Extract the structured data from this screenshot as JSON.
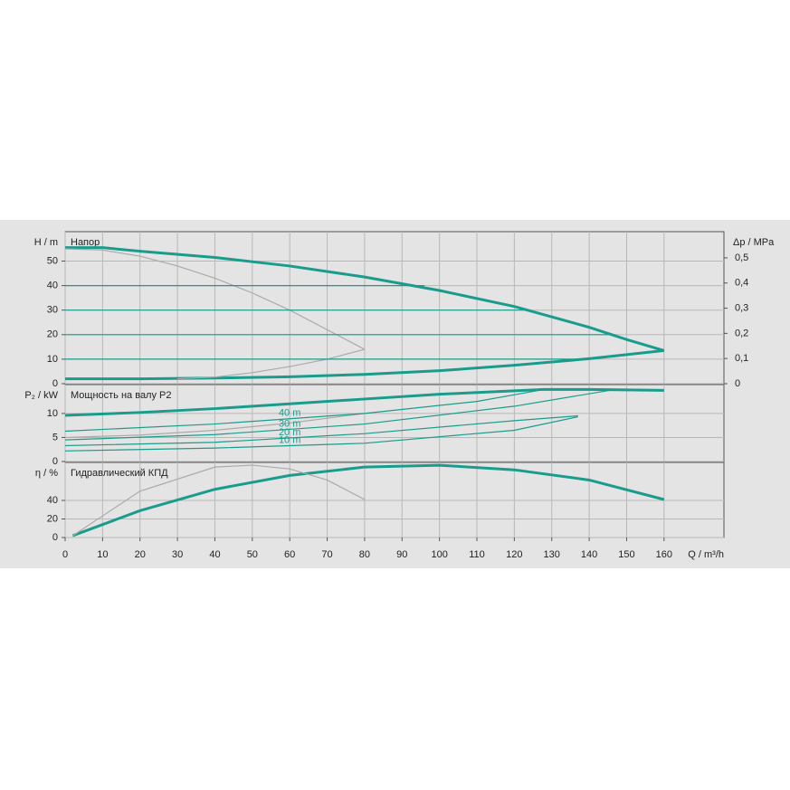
{
  "chart_data": [
    {
      "type": "line",
      "title": "Напор",
      "ylabel": "H / m",
      "y2label": "Δp / MPa",
      "ylim": [
        0,
        62
      ],
      "yticks": [
        0,
        10,
        20,
        30,
        40,
        50
      ],
      "y2lim": [
        0,
        0.604
      ],
      "y2ticks": [
        0,
        {
          "value": 0.1,
          "label": "0,1"
        },
        {
          "value": 0.2,
          "label": "0,2"
        },
        {
          "value": 0.3,
          "label": "0,3"
        },
        {
          "value": 0.4,
          "label": "0,4"
        },
        {
          "value": 0.5,
          "label": "0,5"
        }
      ],
      "grid": true,
      "series": [
        {
          "color": "#1a9c8c",
          "bold": true,
          "x": [
            0,
            10,
            20,
            40,
            60,
            80,
            100,
            120,
            140,
            150,
            160
          ],
          "values": [
            55.5,
            55.5,
            54,
            51.5,
            48,
            43.5,
            38,
            31.5,
            23,
            18,
            13.5
          ]
        },
        {
          "color": "#1a9c8c",
          "bold": true,
          "x": [
            0,
            20,
            40,
            60,
            80,
            100,
            120,
            140,
            160
          ],
          "values": [
            2,
            2,
            2.3,
            2.8,
            3.8,
            5.3,
            7.5,
            10.2,
            13.5
          ]
        },
        {
          "color": "#aaaaaa",
          "x": [
            0,
            10,
            20,
            30,
            40,
            50,
            60,
            70,
            80
          ],
          "values": [
            55,
            54.5,
            52,
            48,
            43,
            37,
            30,
            22,
            14
          ]
        },
        {
          "color": "#aaaaaa",
          "x": [
            30,
            40,
            50,
            60,
            70,
            80
          ],
          "values": [
            2,
            2.7,
            4.5,
            7,
            10,
            14
          ]
        },
        {
          "color": "#1a9c8c",
          "x": [
            0,
            96
          ],
          "values": [
            40,
            40
          ]
        },
        {
          "color": "#1a9c8c",
          "x": [
            0,
            124
          ],
          "values": [
            30,
            30
          ]
        },
        {
          "color": "#1a9c8c",
          "x": [
            0,
            146
          ],
          "values": [
            20,
            20
          ]
        },
        {
          "color": "#1a9c8c",
          "x": [
            0,
            141
          ],
          "values": [
            10,
            10
          ]
        }
      ]
    },
    {
      "type": "line",
      "title": "Мощность на валу P2",
      "ylabel": "P₂ / kW",
      "ylim": [
        0,
        16
      ],
      "yticks": [
        0,
        5,
        10
      ],
      "grid": true,
      "series": [
        {
          "color": "#1a9c8c",
          "bold": true,
          "x": [
            0,
            20,
            40,
            60,
            80,
            100,
            120,
            128,
            140,
            160
          ],
          "values": [
            9.6,
            10.2,
            11,
            12,
            13,
            14,
            14.7,
            15,
            15,
            14.8
          ]
        },
        {
          "color": "#aaaaaa",
          "x": [
            0,
            20,
            40,
            60,
            80
          ],
          "values": [
            5,
            5.5,
            6.5,
            8,
            10
          ]
        },
        {
          "color": "#1a9c8c",
          "label": "40 m",
          "x": [
            0,
            40,
            80,
            110,
            128
          ],
          "values": [
            6.3,
            7.8,
            10,
            12.5,
            15
          ]
        },
        {
          "color": "#1a9c8c",
          "label": "30 m",
          "x": [
            0,
            40,
            80,
            120,
            147
          ],
          "values": [
            4.5,
            5.6,
            7.8,
            11.5,
            15
          ]
        },
        {
          "color": "#1a9c8c",
          "label": "20 m",
          "x": [
            0,
            40,
            80,
            120,
            137
          ],
          "values": [
            3.3,
            4,
            5.8,
            8.5,
            9.5
          ]
        },
        {
          "color": "#1a9c8c",
          "label": "10 m",
          "x": [
            0,
            40,
            80,
            120,
            137
          ],
          "values": [
            2.2,
            2.8,
            3.8,
            6.5,
            9.3
          ]
        }
      ]
    },
    {
      "type": "line",
      "title": "Гидравлический КПД",
      "ylabel": "η / %",
      "xlabel": "Q / m³/h",
      "xlim": [
        0,
        176
      ],
      "xticks": [
        0,
        10,
        20,
        30,
        40,
        50,
        60,
        70,
        80,
        90,
        100,
        110,
        120,
        130,
        140,
        150,
        160
      ],
      "ylim": [
        0,
        81
      ],
      "yticks": [
        0,
        20,
        40
      ],
      "grid": true,
      "series": [
        {
          "color": "#1a9c8c",
          "bold": true,
          "x": [
            2,
            20,
            40,
            60,
            80,
            100,
            120,
            140,
            160
          ],
          "values": [
            2,
            29,
            52,
            67,
            76,
            78,
            73,
            62,
            41
          ]
        },
        {
          "color": "#aaaaaa",
          "x": [
            2,
            20,
            40,
            50,
            60,
            70,
            80
          ],
          "values": [
            2,
            50,
            76,
            78,
            74,
            62,
            41
          ]
        }
      ]
    }
  ]
}
